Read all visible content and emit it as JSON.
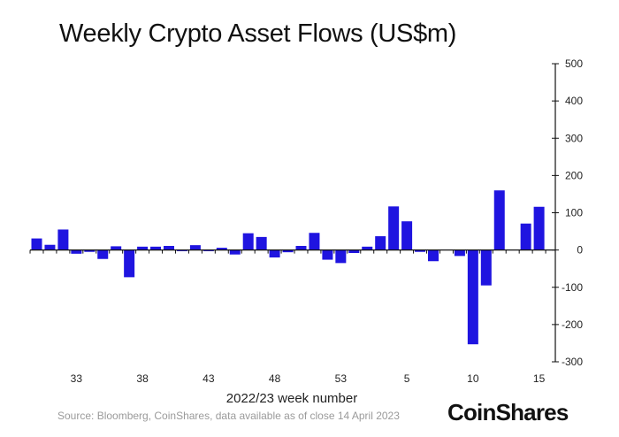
{
  "title": "Weekly Crypto Asset Flows (US$m)",
  "source": "Source: Bloomberg, CoinShares, data available as of close 14 April 2023",
  "brand": "CoinShares",
  "colors": {
    "bar": "#1f14e0",
    "axis": "#111111",
    "text": "#222222",
    "source": "#9a9a9a"
  },
  "chart_data": {
    "type": "bar",
    "title": "Weekly Crypto Asset Flows (US$m)",
    "xlabel": "2022/23 week number",
    "ylabel": "",
    "ylim": [
      -300,
      500
    ],
    "yticks": [
      500,
      400,
      300,
      200,
      100,
      0,
      -100,
      -200,
      -300
    ],
    "y_axis_side": "right",
    "grid": false,
    "x_tick_labels": [
      {
        "index": 3,
        "label": "33"
      },
      {
        "index": 8,
        "label": "38"
      },
      {
        "index": 13,
        "label": "43"
      },
      {
        "index": 18,
        "label": "48"
      },
      {
        "index": 23,
        "label": "53"
      },
      {
        "index": 28,
        "label": "5"
      },
      {
        "index": 33,
        "label": "10"
      },
      {
        "index": 38,
        "label": "15"
      }
    ],
    "values": [
      31,
      14,
      55,
      -10,
      -5,
      -24,
      10,
      -73,
      9,
      9,
      11,
      -3,
      13,
      -3,
      6,
      -12,
      45,
      35,
      -20,
      -6,
      11,
      46,
      -26,
      -35,
      -8,
      9,
      37,
      117,
      77,
      -5,
      -30,
      0,
      -16,
      -253,
      -95,
      160,
      0,
      71,
      116
    ]
  }
}
